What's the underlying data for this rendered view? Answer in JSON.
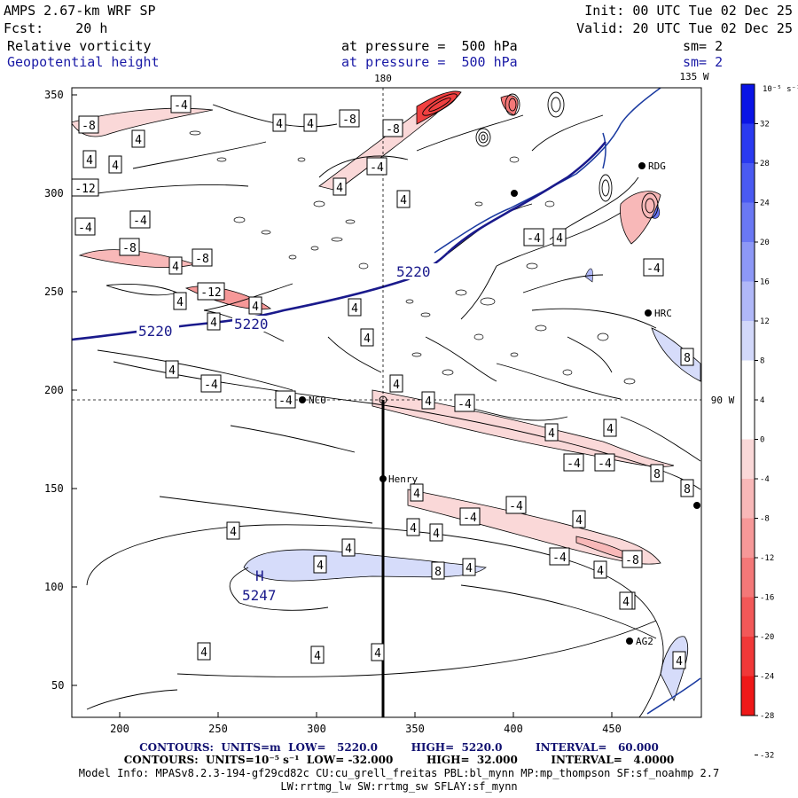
{
  "header": {
    "model": "AMPS 2.67-km WRF SP",
    "init": "Init: 00 UTC Tue 02 Dec 25",
    "fcst": "Fcst:    20 h",
    "valid": "Valid: 20 UTC Tue 02 Dec 25",
    "field1_name": "Relative vorticity",
    "field1_level": "at pressure =  500 hPa",
    "field1_sm": "sm= 2",
    "field2_name": "Geopotential height",
    "field2_level": "at pressure =  500 hPa",
    "field2_sm": "sm= 2"
  },
  "map": {
    "x_ticks": [
      "200",
      "250",
      "300",
      "350",
      "400",
      "450"
    ],
    "y_ticks": [
      "350",
      "300",
      "250",
      "200",
      "150",
      "100",
      "50"
    ],
    "grid_labels": {
      "lon_180": "180",
      "lon_135w": "135 W",
      "lon_90w": "90 W"
    },
    "stations": [
      {
        "name": "RDG"
      },
      {
        "name": "HRC"
      },
      {
        "name": "NCO"
      },
      {
        "name": "Henry"
      },
      {
        "name": "AG2"
      }
    ],
    "height_labels": [
      "5220",
      "5220",
      "5220"
    ],
    "high_center": {
      "letter": "H",
      "value": "5247"
    },
    "vorticity_labels": [
      "-8",
      "-4",
      "4",
      "4",
      "4",
      "-12",
      "4",
      "4",
      "-8",
      "-8",
      "-4",
      "4",
      "4",
      "-4",
      "-4",
      "-8",
      "4",
      "-8",
      "-12",
      "4",
      "4",
      "4",
      "4",
      "4",
      "4",
      "4",
      "-4",
      "-4",
      "-4",
      "4",
      "4",
      "-4",
      "-4",
      "4",
      "-4",
      "4",
      "-4",
      "-4",
      "4",
      "4",
      "-8",
      "-4",
      "8",
      "8",
      "8",
      "8",
      "4",
      "4",
      "4",
      "8",
      "4",
      "4",
      "4",
      "4",
      "4",
      "4",
      "4",
      "4",
      "-4",
      "4"
    ]
  },
  "colorbar": {
    "unit": "10⁻⁵ s⁻¹",
    "labels": [
      "32",
      "28",
      "24",
      "20",
      "16",
      "12",
      "8",
      "4",
      "0",
      "-4",
      "-8",
      "-12",
      "-16",
      "-20",
      "-24",
      "-28",
      "-32"
    ],
    "colors": [
      "#0a14e6",
      "#2a3af0",
      "#4a5af2",
      "#6a78f4",
      "#8d98f6",
      "#b0b8f8",
      "#d2d8fa",
      "#ffffff",
      "#ffffff",
      "#fad8d8",
      "#f8b8b8",
      "#f69898",
      "#f47878",
      "#f25858",
      "#f03838",
      "#ee1818"
    ]
  },
  "footer": {
    "contours1": "CONTOURS:  UNITS=m  LOW=   5220.0         HIGH=  5220.0         INTERVAL=   60.000",
    "contours2": "CONTOURS:  UNITS=10⁻⁵ s⁻¹  LOW= -32.000         HIGH=  32.000         INTERVAL=   4.0000",
    "model_info": "Model Info: MPASv8.2.3-194-gf29cd82c CU:cu_grell_freitas PBL:bl_mynn MP:mp_thompson SF:sf_noahmp 2.7",
    "model_info2": "LW:rrtmg_lw SW:rrtmg_sw SFLAY:sf_mynn"
  }
}
